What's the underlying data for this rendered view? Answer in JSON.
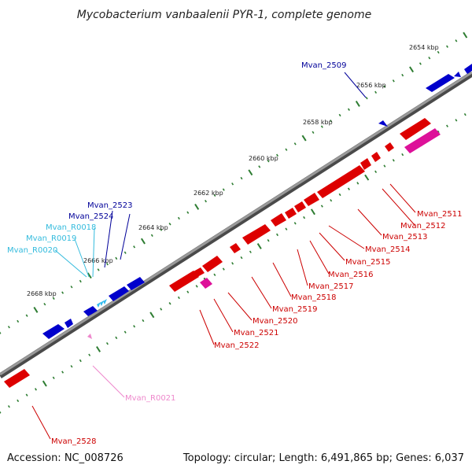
{
  "title": "Mycobacterium vanbaalenii PYR-1, complete genome",
  "footer": {
    "accession": "Accession: NC_008726",
    "summary": "Topology: circular; Length: 6,491,865 bp; Genes: 6,037"
  },
  "colors": {
    "backbone": "#7a7a7a",
    "tick": "#2e7d32",
    "forward_gene": "#0000cc",
    "reverse_gene": "#dd0000",
    "forward_rna": "#33bbee",
    "reverse_rna": "#dd1199",
    "label_forward": "#000099",
    "label_forward_rna": "#33bbdd",
    "label_reverse": "#cc0000",
    "label_reverse_rna": "#ee88cc"
  },
  "scale_labels": [
    "2654 kbp",
    "2656 kbp",
    "2658 kbp",
    "2660 kbp",
    "2662 kbp",
    "2664 kbp",
    "2666 kbp",
    "2668 kbp"
  ],
  "gene_labels": {
    "forward": [
      "Mvan_2509",
      "Mvan_2523",
      "Mvan_2524"
    ],
    "forward_rna": [
      "Mvan_R0018",
      "Mvan_R0019",
      "Mvan_R0020"
    ],
    "reverse": [
      "Mvan_2511",
      "Mvan_2512",
      "Mvan_2513",
      "Mvan_2514",
      "Mvan_2515",
      "Mvan_2516",
      "Mvan_2517",
      "Mvan_2518",
      "Mvan_2519",
      "Mvan_2520",
      "Mvan_2521",
      "Mvan_2522",
      "Mvan_2528"
    ],
    "reverse_rna": [
      "Mvan_R0021"
    ]
  }
}
